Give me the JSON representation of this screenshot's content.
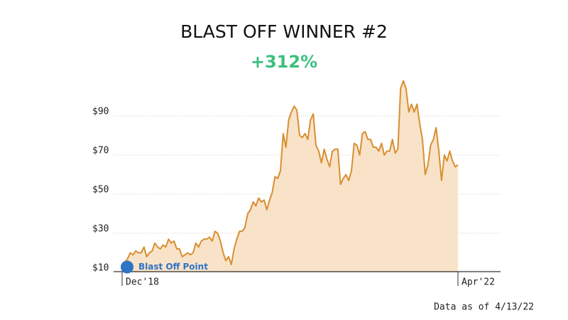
{
  "chart_data": {
    "type": "area",
    "title": "BLAST OFF WINNER #2",
    "subtitle": "+312%",
    "annotation": "Blast Off Point",
    "footnote": "Data as of 4/13/22",
    "line_color": "#d98e32",
    "fill_color": "#f8e3c8",
    "annotation_color": "#2f73c4",
    "subtitle_color": "#3cc07d",
    "grid": true,
    "ylim": [
      10,
      110
    ],
    "yticks": [
      {
        "value": 10,
        "label": "$10"
      },
      {
        "value": 30,
        "label": "$30"
      },
      {
        "value": 50,
        "label": "$50"
      },
      {
        "value": 70,
        "label": "$70"
      },
      {
        "value": 90,
        "label": "$90"
      }
    ],
    "categories": [
      "Dec'18",
      null,
      null,
      null,
      null,
      null,
      null,
      null,
      null,
      null,
      null,
      null,
      null,
      null,
      null,
      null,
      null,
      null,
      null,
      null,
      null,
      null,
      null,
      null,
      null,
      null,
      null,
      null,
      null,
      null,
      null,
      null,
      null,
      null,
      null,
      null,
      null,
      null,
      null,
      null,
      null,
      null,
      null,
      null,
      null,
      null,
      null,
      null,
      null,
      null,
      null,
      null,
      null,
      null,
      null,
      null,
      null,
      null,
      null,
      null,
      null,
      null,
      null,
      null,
      null,
      null,
      null,
      null,
      null,
      null,
      null,
      null,
      null,
      null,
      null,
      null,
      null,
      null,
      null,
      null,
      null,
      null,
      null,
      null,
      null,
      null,
      null,
      null,
      null,
      null,
      null,
      null,
      null,
      null,
      null,
      null,
      null,
      null,
      null,
      null,
      null,
      null,
      null,
      null,
      null,
      null,
      null,
      null,
      null,
      null,
      null,
      null,
      null,
      null,
      null,
      null,
      null,
      null,
      null,
      null,
      null,
      null,
      null,
      "Apr'22"
    ],
    "values": [
      12,
      15,
      17,
      20,
      19,
      21,
      20,
      20,
      23,
      18,
      20,
      21,
      25,
      23,
      22,
      24,
      23,
      27,
      25,
      26,
      22,
      22,
      18,
      19,
      20,
      19,
      20,
      25,
      23,
      26,
      27,
      27,
      28,
      26,
      31,
      30,
      26,
      20,
      16,
      18,
      14,
      22,
      27,
      31,
      31,
      33,
      40,
      42,
      46,
      44,
      48,
      46,
      47,
      42,
      47,
      51,
      59,
      58,
      62,
      81,
      74,
      88,
      92,
      95,
      93,
      80,
      79,
      81,
      78,
      88,
      91,
      75,
      72,
      66,
      73,
      68,
      64,
      72,
      73,
      73,
      55,
      58,
      60,
      57,
      62,
      76,
      75,
      70,
      81,
      82,
      78,
      78,
      74,
      74,
      72,
      76,
      70,
      72,
      72,
      78,
      71,
      73,
      104,
      108,
      104,
      92,
      96,
      92,
      96,
      86,
      78,
      60,
      65,
      75,
      78,
      84,
      72,
      57,
      70,
      67,
      72,
      67,
      64,
      65
    ]
  }
}
